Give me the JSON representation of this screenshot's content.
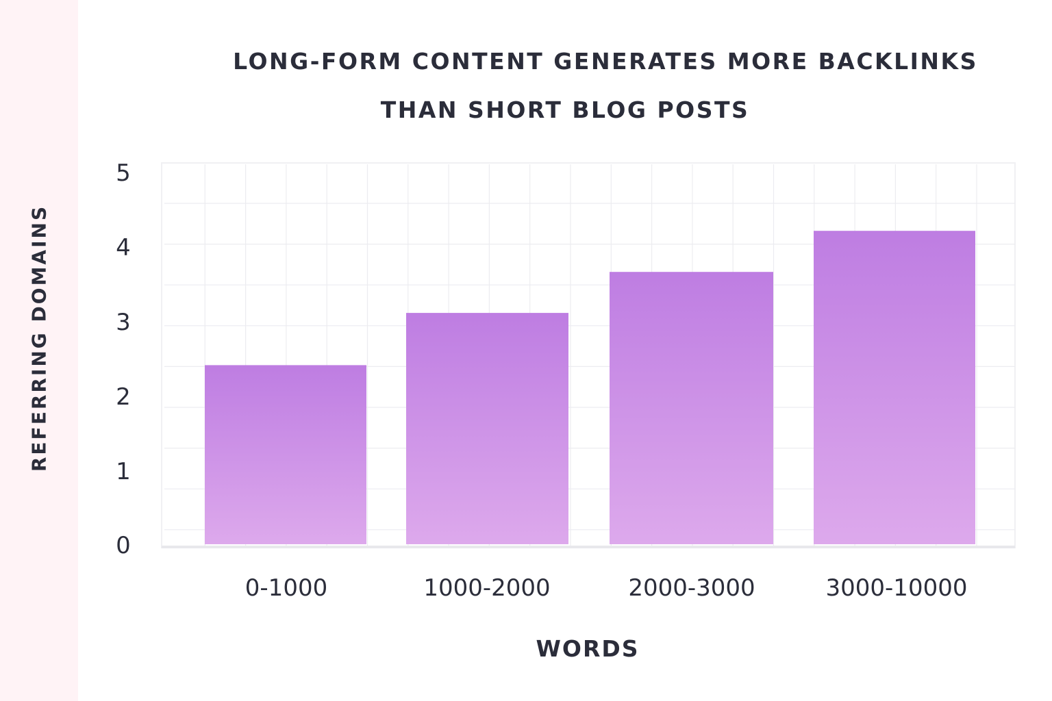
{
  "chart_data": {
    "type": "bar",
    "title_lines": [
      "LONG-FORM CONTENT GENERATES MORE BACKLINKS",
      "THAN SHORT BLOG POSTS"
    ],
    "xlabel": "WORDS",
    "ylabel": "REFERRING DOMAINS",
    "categories": [
      "0-1000",
      "1000-2000",
      "2000-3000",
      "3000-10000"
    ],
    "values": [
      2.4,
      3.1,
      3.65,
      4.2
    ],
    "ylim": [
      0,
      5
    ],
    "yticks": [
      "0",
      "1",
      "2",
      "3",
      "4",
      "5"
    ],
    "grid": true,
    "colors": {
      "bar_top": "#be7de2",
      "bar_bottom": "#dda9ec",
      "grid": "#ececf0",
      "side_strip": "#fff3f6",
      "text": "#2b2d3a"
    }
  }
}
